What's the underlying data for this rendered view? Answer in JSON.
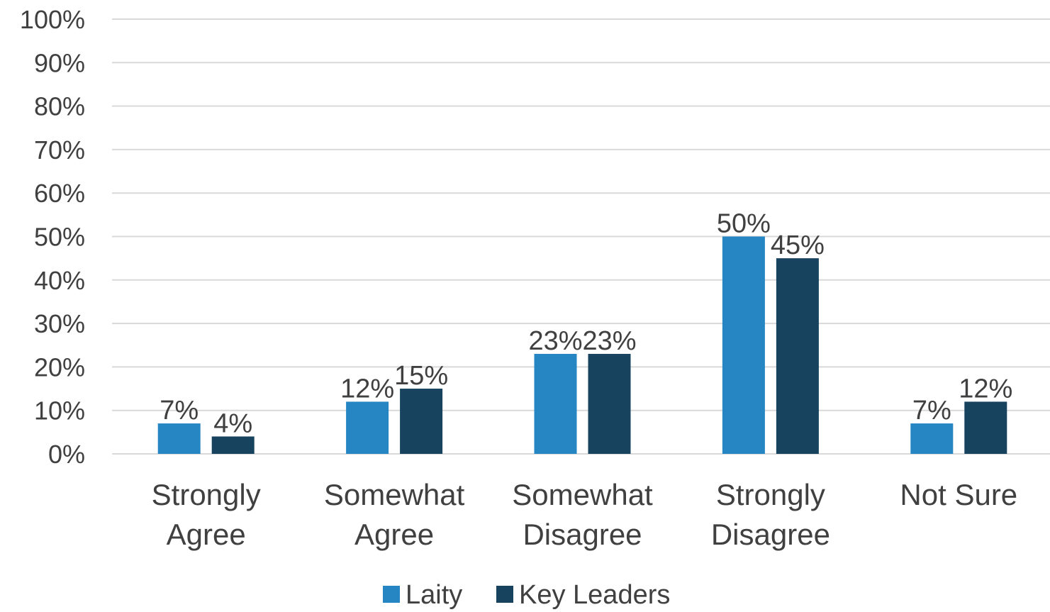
{
  "chart_data": {
    "type": "bar",
    "categories": [
      [
        "Strongly",
        "Agree"
      ],
      [
        "Somewhat",
        "Agree"
      ],
      [
        "Somewhat",
        "Disagree"
      ],
      [
        "Strongly",
        "Disagree"
      ],
      [
        "Not Sure"
      ]
    ],
    "series": [
      {
        "name": "Laity",
        "color": "#2586c3",
        "values": [
          7,
          12,
          23,
          50,
          7
        ],
        "labels": [
          "7%",
          "12%",
          "23%",
          "50%",
          "7%"
        ]
      },
      {
        "name": "Key Leaders",
        "color": "#17435f",
        "values": [
          4,
          15,
          23,
          45,
          12
        ],
        "labels": [
          "4%",
          "15%",
          "23%",
          "45%",
          "12%"
        ]
      }
    ],
    "y_ticks": [
      "0%",
      "10%",
      "20%",
      "30%",
      "40%",
      "50%",
      "60%",
      "70%",
      "80%",
      "90%",
      "100%"
    ],
    "ylim": [
      0,
      100
    ],
    "grid": true,
    "legend_position": "bottom"
  }
}
